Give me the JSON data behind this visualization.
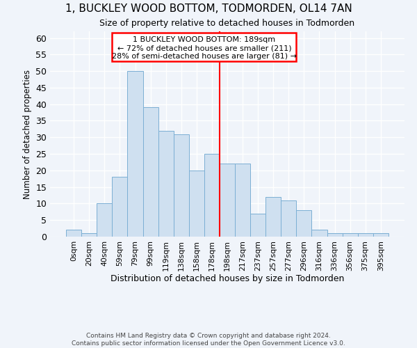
{
  "title": "1, BUCKLEY WOOD BOTTOM, TODMORDEN, OL14 7AN",
  "subtitle": "Size of property relative to detached houses in Todmorden",
  "xlabel_bottom": "Distribution of detached houses by size in Todmorden",
  "ylabel": "Number of detached properties",
  "bar_color": "#cfe0f0",
  "bar_edge_color": "#7bafd4",
  "background_color": "#f0f4fa",
  "plot_bg_color": "#f0f4fa",
  "grid_color": "#ffffff",
  "categories": [
    "0sqm",
    "20sqm",
    "40sqm",
    "59sqm",
    "79sqm",
    "99sqm",
    "119sqm",
    "138sqm",
    "158sqm",
    "178sqm",
    "198sqm",
    "217sqm",
    "237sqm",
    "257sqm",
    "277sqm",
    "296sqm",
    "316sqm",
    "336sqm",
    "356sqm",
    "375sqm",
    "395sqm"
  ],
  "values": [
    2,
    1,
    10,
    18,
    50,
    39,
    32,
    31,
    20,
    25,
    22,
    22,
    7,
    12,
    11,
    8,
    2,
    1,
    1,
    1,
    1
  ],
  "ylim": [
    0,
    62
  ],
  "yticks": [
    0,
    5,
    10,
    15,
    20,
    25,
    30,
    35,
    40,
    45,
    50,
    55,
    60
  ],
  "property_label": "1 BUCKLEY WOOD BOTTOM: 189sqm",
  "annotation_line1": "← 72% of detached houses are smaller (211)",
  "annotation_line2": "28% of semi-detached houses are larger (81) →",
  "vline_x": 9.5,
  "footer1": "Contains HM Land Registry data © Crown copyright and database right 2024.",
  "footer2": "Contains public sector information licensed under the Open Government Licence v3.0."
}
